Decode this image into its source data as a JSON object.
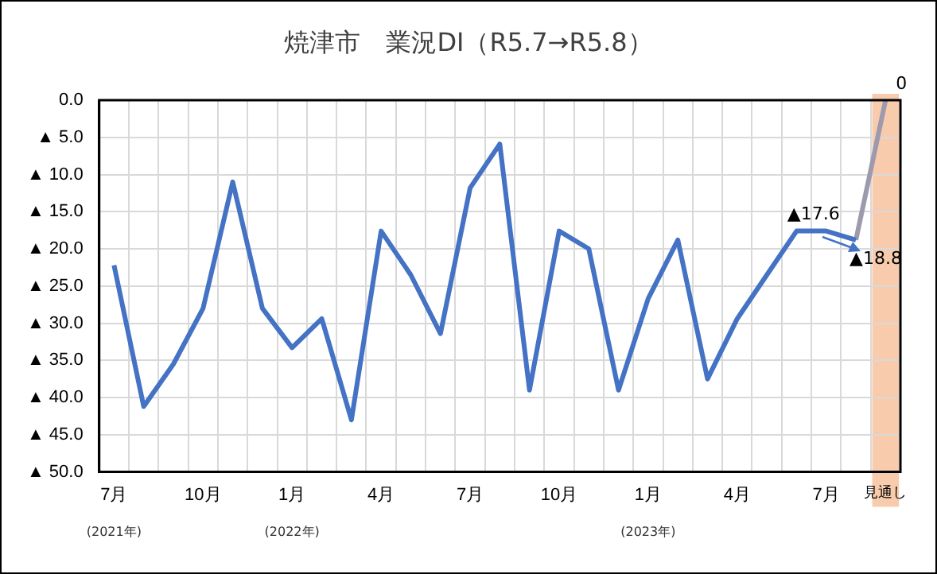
{
  "chart_data": {
    "type": "line",
    "title": "焼津市　業況DI（R5.7→R5.8）",
    "categories": [
      "7月",
      null,
      null,
      "10月",
      null,
      null,
      "1月",
      null,
      null,
      "4月",
      null,
      null,
      "7月",
      null,
      null,
      "10月",
      null,
      null,
      "1月",
      null,
      null,
      "4月",
      null,
      null,
      "7月",
      null,
      "見通し"
    ],
    "series": [
      {
        "color": "#4472c4",
        "values": [
          -22.2,
          -41.2,
          -35.5,
          -28.0,
          -11.0,
          -28.0,
          -33.3,
          -29.4,
          -43.0,
          -17.6,
          -23.5,
          -31.4,
          -11.8,
          -5.9,
          -39.0,
          -17.6,
          -20.0,
          -39.0,
          -26.7,
          -18.8,
          -37.5,
          -29.4,
          -23.5,
          -17.6,
          -17.6,
          -18.8,
          null
        ]
      },
      {
        "color": "#9e9aae",
        "values": [
          null,
          null,
          null,
          null,
          null,
          null,
          null,
          null,
          null,
          null,
          null,
          null,
          null,
          null,
          null,
          null,
          null,
          null,
          null,
          null,
          null,
          null,
          null,
          null,
          null,
          -18.8,
          0
        ]
      }
    ],
    "ylim": [
      -50,
      0
    ],
    "yticks": [
      {
        "value": 0,
        "label": "0.0"
      },
      {
        "value": -5,
        "label": "▲ 5.0"
      },
      {
        "value": -10,
        "label": "▲ 10.0"
      },
      {
        "value": -15,
        "label": "▲ 15.0"
      },
      {
        "value": -20,
        "label": "▲ 20.0"
      },
      {
        "value": -25,
        "label": "▲ 25.0"
      },
      {
        "value": -30,
        "label": "▲ 30.0"
      },
      {
        "value": -35,
        "label": "▲ 35.0"
      },
      {
        "value": -40,
        "label": "▲ 40.0"
      },
      {
        "value": -45,
        "label": "▲ 45.0"
      },
      {
        "value": -50,
        "label": "▲ 50.0"
      }
    ],
    "bands": [
      {
        "axis": "x",
        "from": "見通し",
        "to": "見通し",
        "color": "#f8cbad"
      }
    ],
    "annotations": [
      "(2021年)",
      "(2022年)",
      "(2023年)",
      {
        "text": "▲17.6",
        "y": -17.6
      },
      {
        "text": "▲18.8",
        "y": -18.8
      },
      {
        "text": "0",
        "y": 0
      }
    ],
    "grid": true,
    "legend": false,
    "marker": "none",
    "line_style": "solid"
  }
}
